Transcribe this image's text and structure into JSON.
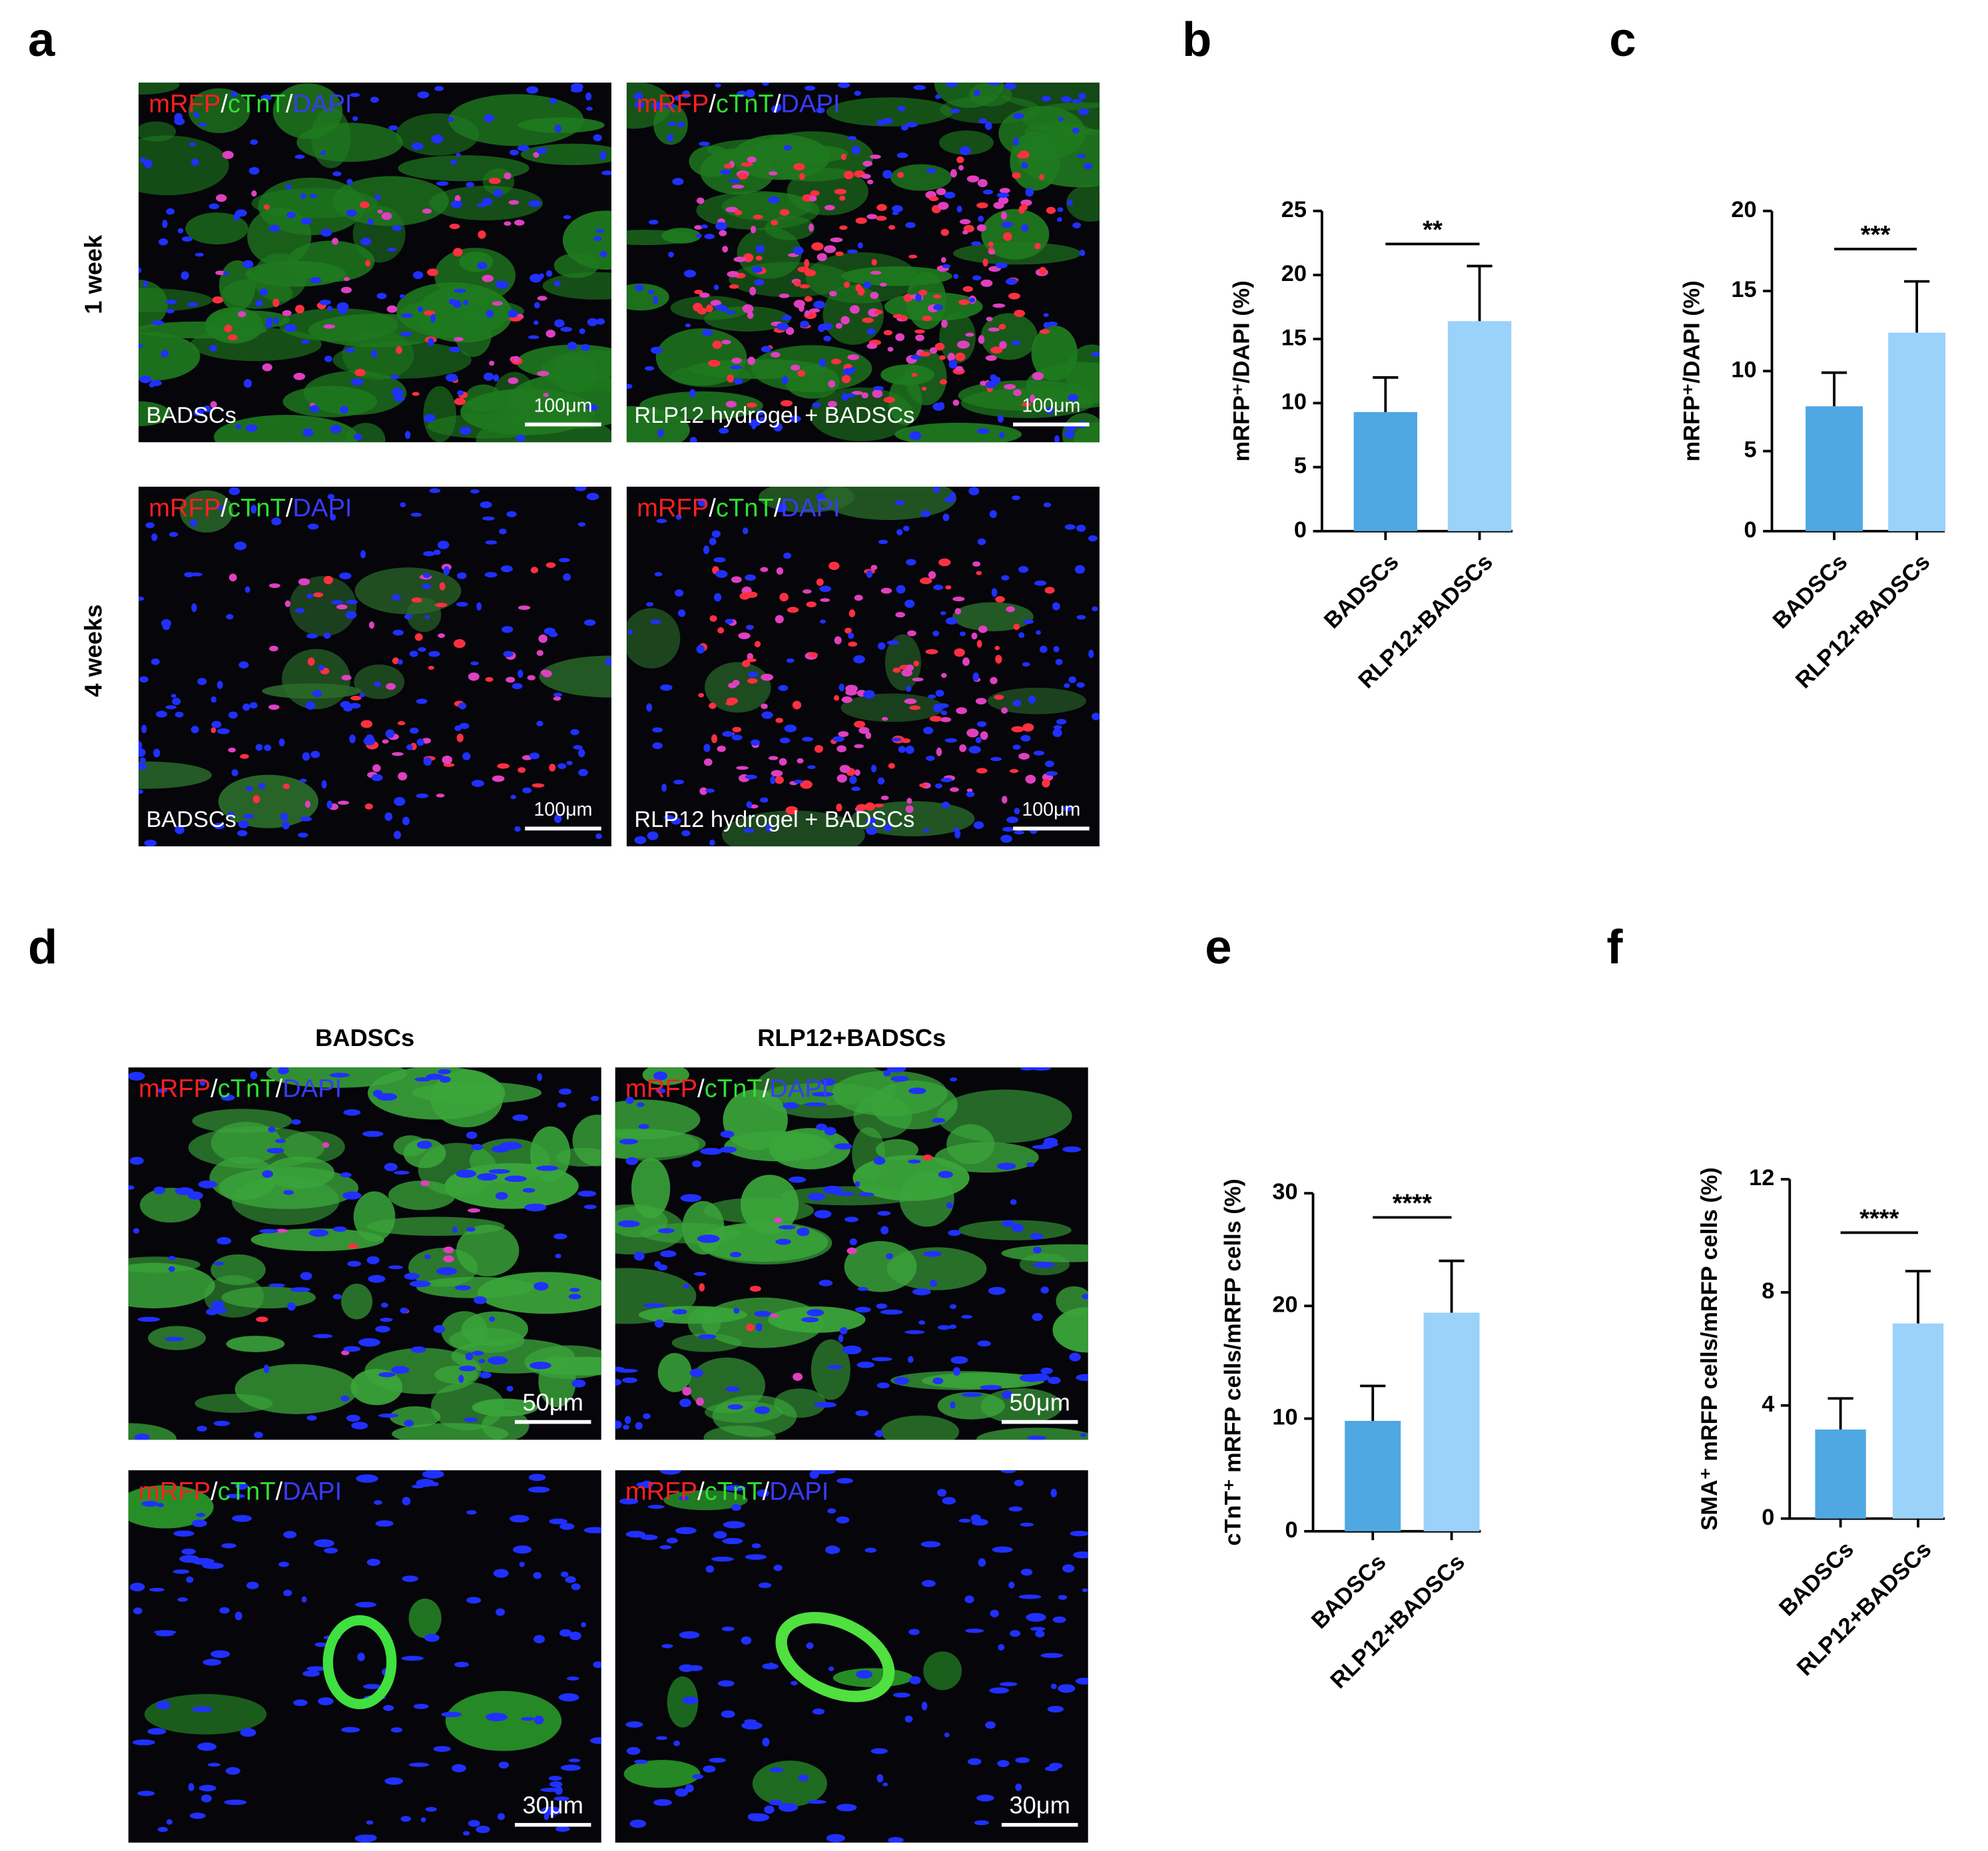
{
  "chart_data": [
    {
      "type": "bar",
      "ylabel": "mRFP⁺/DAPI (%)",
      "categories": [
        "BADSCs",
        "RLP12+BADSCs"
      ],
      "values": [
        9.3,
        16.4
      ],
      "errors": [
        2.7,
        4.3
      ],
      "colors": [
        "#4fa8e2",
        "#9ad2fa"
      ],
      "ylim": [
        0,
        25
      ],
      "yticks": [
        0,
        5,
        10,
        15,
        20,
        25
      ],
      "annotation": "**"
    },
    {
      "type": "bar",
      "ylabel": "mRFP⁺/DAPI (%)",
      "categories": [
        "BADSCs",
        "RLP12+BADSCs"
      ],
      "values": [
        7.8,
        12.4
      ],
      "errors": [
        2.1,
        3.2
      ],
      "colors": [
        "#4fa8e2",
        "#9ad2fa"
      ],
      "ylim": [
        0,
        20
      ],
      "yticks": [
        0,
        5,
        10,
        15,
        20
      ],
      "annotation": "***"
    },
    {
      "type": "bar",
      "ylabel": "cTnT⁺ mRFP cells/mRFP cells (%)",
      "categories": [
        "BADSCs",
        "RLP12+BADSCs"
      ],
      "values": [
        9.8,
        19.4
      ],
      "errors": [
        3.1,
        4.6
      ],
      "colors": [
        "#4fa8e2",
        "#9ad2fa"
      ],
      "ylim": [
        0,
        30
      ],
      "yticks": [
        0,
        10,
        20,
        30
      ],
      "annotation": "****"
    },
    {
      "type": "bar",
      "ylabel": "SMA⁺ mRFP cells/mRFP cells (%)",
      "categories": [
        "BADSCs",
        "RLP12+BADSCs"
      ],
      "values": [
        3.15,
        6.9
      ],
      "errors": [
        1.1,
        1.85
      ],
      "colors": [
        "#4fa8e2",
        "#9ad2fa"
      ],
      "ylim": [
        0,
        12
      ],
      "yticks": [
        0,
        4,
        8,
        12
      ],
      "annotation": "****"
    }
  ],
  "panels": {
    "letters": [
      "a",
      "b",
      "c",
      "d",
      "e",
      "f"
    ],
    "stain": [
      "mRFP",
      "/",
      "cTnT",
      "/",
      "DAPI"
    ],
    "rows_a": [
      "1 week",
      "4 weeks"
    ],
    "captions_a": [
      "BADSCs",
      "RLP12 hydrogel + BADSCs"
    ],
    "scale_a": "100μm",
    "columns_d": [
      "BADSCs",
      "RLP12+BADSCs"
    ],
    "scale_d": [
      "50μm",
      "30μm"
    ]
  }
}
